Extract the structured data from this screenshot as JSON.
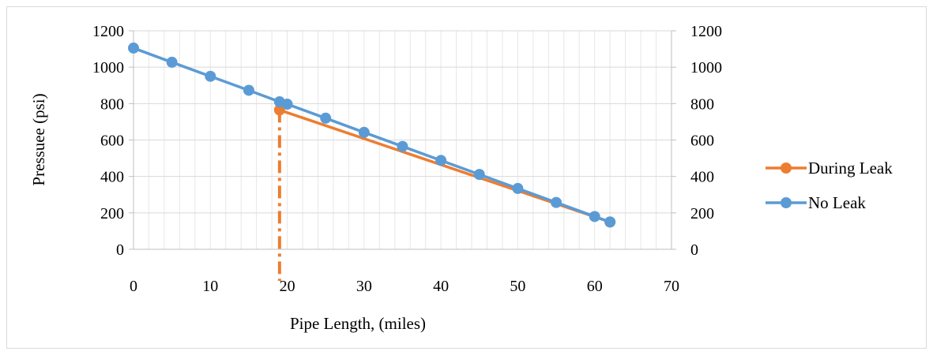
{
  "chart_data": {
    "type": "line",
    "title": "",
    "xlabel": "Pipe Length, (miles)",
    "ylabel": "Pressuee (psi)",
    "xlim": [
      0,
      70
    ],
    "ylim": [
      0,
      1200
    ],
    "x_ticks": [
      0,
      10,
      20,
      30,
      40,
      50,
      60,
      70
    ],
    "y_ticks": [
      0,
      200,
      400,
      600,
      800,
      1000,
      1200
    ],
    "y2_ticks": [
      0,
      200,
      400,
      600,
      800,
      1000,
      1200
    ],
    "grid": true,
    "legend_position": "right",
    "leak_location_x": 19,
    "series": [
      {
        "name": "During Leak",
        "color": "#ED7D31",
        "x": [
          19,
          62
        ],
        "y": [
          765,
          150
        ]
      },
      {
        "name": "No Leak",
        "color": "#5B9BD5",
        "x": [
          0,
          5,
          10,
          15,
          19,
          20,
          25,
          30,
          35,
          40,
          45,
          50,
          55,
          60,
          62
        ],
        "y": [
          1105,
          1027,
          950,
          873,
          810,
          797,
          720,
          642,
          565,
          488,
          411,
          334,
          257,
          180,
          150
        ]
      }
    ]
  }
}
